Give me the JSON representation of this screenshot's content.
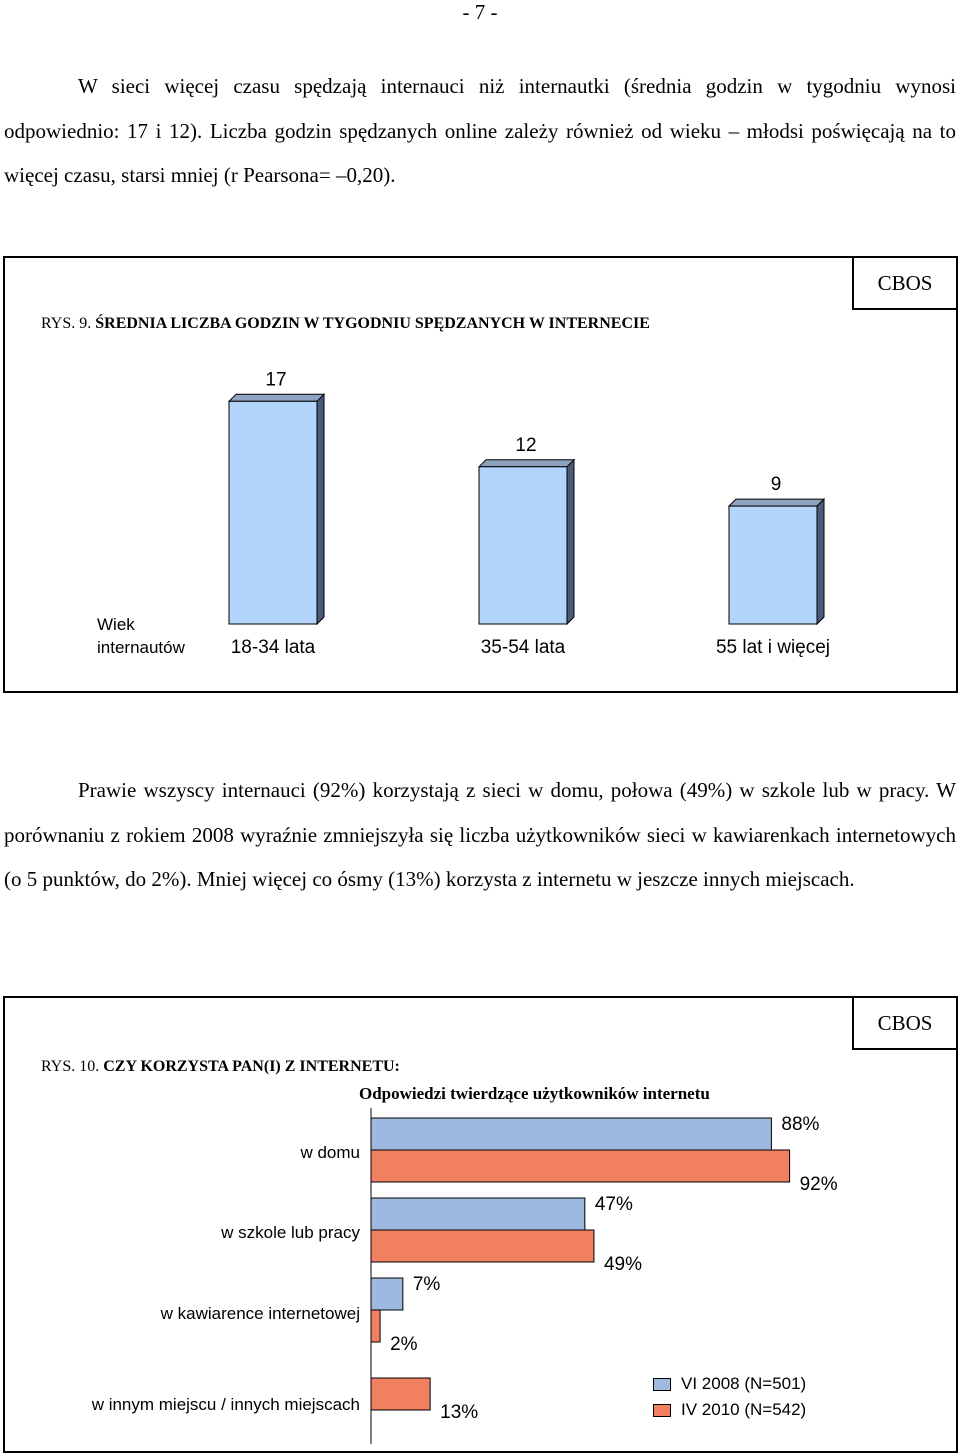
{
  "page_number": "- 7 -",
  "paragraph1": "W sieci więcej czasu spędzają internauci niż internautki (średnia godzin w tygodniu wynosi odpowiednio: 17 i 12). Liczba godzin spędzanych online zależy również od wieku – młodsi poświęcają na to więcej czasu, starsi mniej (r Pearsona= –0,20).",
  "paragraph2": "Prawie wszyscy internauci (92%) korzystają z sieci w domu, połowa (49%) w szkole lub w pracy. W porównaniu z rokiem 2008 wyraźnie zmniejszyła się liczba użytkowników sieci w kawiarenkach internetowych (o 5 punktów, do 2%). Mniej więcej co ósmy (13%) korzysta z internetu w jeszcze innych miejscach.",
  "figure1": {
    "source_badge": "CBOS",
    "title_number": "RYS. 9.",
    "title": "ŚREDNIA LICZBA GODZIN W TYGODNIU SPĘDZANYCH W INTERNECIE",
    "axis_label": "Wiek internautów",
    "axis_label_lines": [
      "Wiek",
      "internautów"
    ]
  },
  "figure2": {
    "source_badge": "CBOS",
    "title_number": "RYS. 10.",
    "title": "CZY KORZYSTA PAN(I) Z INTERNETU:",
    "subtitle": "Odpowiedzi twierdzące użytkowników internetu"
  },
  "chart_data": [
    {
      "type": "bar",
      "title": "ŚREDNIA LICZBA GODZIN W TYGODNIU SPĘDZANYCH W INTERNECIE",
      "xlabel": "Wiek internautów",
      "categories": [
        "18-34 lata",
        "35-54 lata",
        "55 lat i więcej"
      ],
      "values": [
        17,
        12,
        9
      ],
      "data_labels": [
        "17",
        "12",
        "9"
      ],
      "color": "#b3d4fb",
      "grid": false
    },
    {
      "type": "bar",
      "orientation": "horizontal",
      "title": "CZY KORZYSTA PAN(I) Z INTERNETU:",
      "subtitle": "Odpowiedzi twierdzące użytkowników internetu",
      "categories": [
        "w domu",
        "w szkole lub pracy",
        "w kawiarence internetowej",
        "w innym miejscu / innych miejscach"
      ],
      "series": [
        {
          "name": "VI 2008 (N=501)",
          "values": [
            88,
            47,
            7,
            null
          ],
          "labels": [
            "88%",
            "47%",
            "7%",
            ""
          ],
          "color": "#9db9df"
        },
        {
          "name": "IV 2010 (N=542)",
          "values": [
            92,
            49,
            2,
            13
          ],
          "labels": [
            "92%",
            "49%",
            "2%",
            "13%"
          ],
          "color": "#f08060"
        }
      ],
      "legend": "bottom-right",
      "grid": false
    }
  ]
}
